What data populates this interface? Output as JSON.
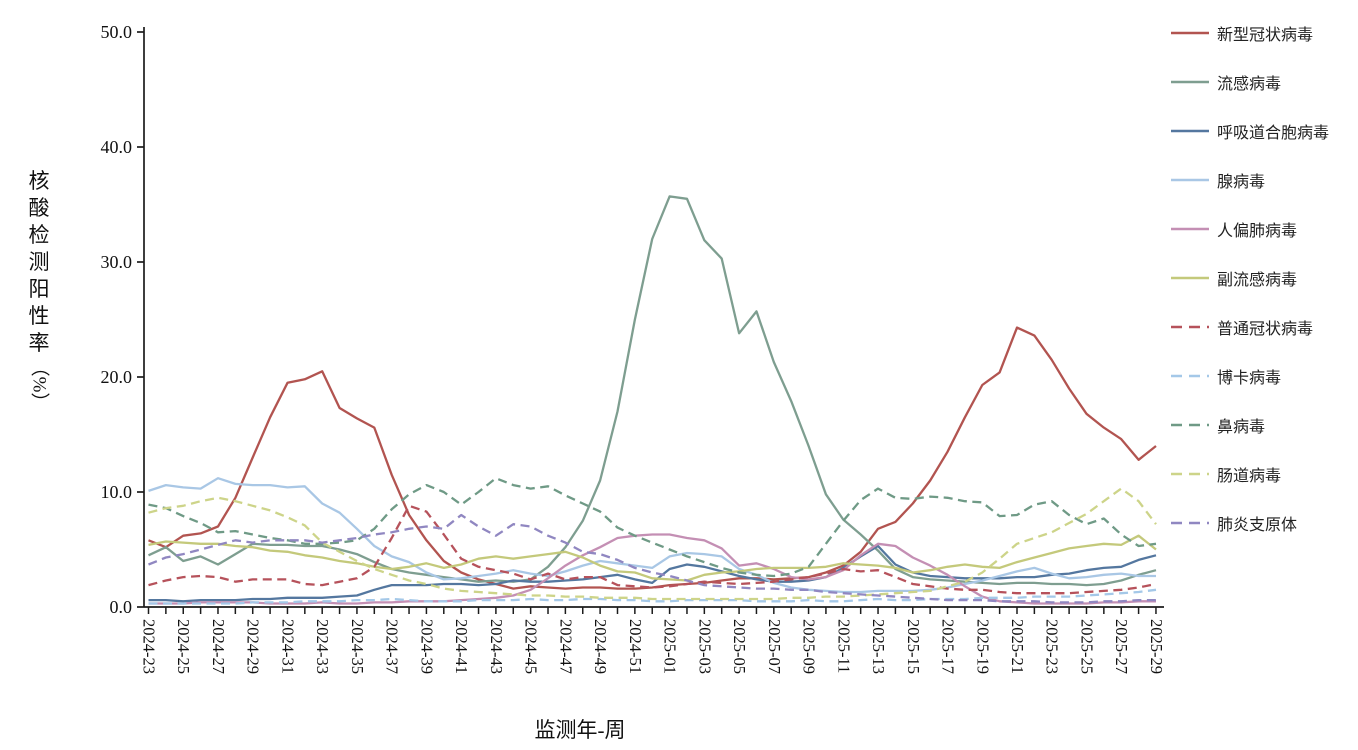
{
  "chart_data": {
    "type": "line",
    "title": "",
    "x_label": "监测年-周",
    "y_label": "核酸检测阳性率",
    "y_unit": "（%）",
    "ylim": [
      0,
      50
    ],
    "y_ticks": [
      0,
      10,
      20,
      30,
      40,
      50
    ],
    "y_tick_labels": [
      "0.0",
      "10.0",
      "20.0",
      "30.0",
      "40.0",
      "50.0"
    ],
    "grid": false,
    "legend_position": "right",
    "x_tick_label_every": 2,
    "x": [
      "2024-23",
      "2024-24",
      "2024-25",
      "2024-26",
      "2024-27",
      "2024-28",
      "2024-29",
      "2024-30",
      "2024-31",
      "2024-32",
      "2024-33",
      "2024-34",
      "2024-35",
      "2024-36",
      "2024-37",
      "2024-38",
      "2024-39",
      "2024-40",
      "2024-41",
      "2024-42",
      "2024-43",
      "2024-44",
      "2024-45",
      "2024-46",
      "2024-47",
      "2024-48",
      "2024-49",
      "2024-50",
      "2024-51",
      "2024-52",
      "2025-01",
      "2025-02",
      "2025-03",
      "2025-04",
      "2025-05",
      "2025-06",
      "2025-07",
      "2025-08",
      "2025-09",
      "2025-10",
      "2025-11",
      "2025-12",
      "2025-13",
      "2025-14",
      "2025-15",
      "2025-16",
      "2025-17",
      "2025-18",
      "2025-19",
      "2025-20",
      "2025-21",
      "2025-22",
      "2025-23",
      "2025-24",
      "2025-25",
      "2025-26",
      "2025-27",
      "2025-28",
      "2025-29"
    ],
    "series": [
      {
        "key": "covid",
        "name": "新型冠状病毒",
        "color": "#b25450",
        "style": "solid",
        "values": [
          5.8,
          5.2,
          6.2,
          6.4,
          7.0,
          9.5,
          13.0,
          16.5,
          19.5,
          19.8,
          20.5,
          17.3,
          16.4,
          15.6,
          11.5,
          8.0,
          5.8,
          4.0,
          3.0,
          2.4,
          2.0,
          1.6,
          1.8,
          1.7,
          1.6,
          1.7,
          1.7,
          1.6,
          1.6,
          1.7,
          1.9,
          2.0,
          2.1,
          2.3,
          2.5,
          2.5,
          2.4,
          2.5,
          2.6,
          3.0,
          3.6,
          4.8,
          6.8,
          7.4,
          9.0,
          11.0,
          13.5,
          16.5,
          19.3,
          20.4,
          24.3,
          23.6,
          21.5,
          19.0,
          16.8,
          15.6,
          14.6,
          12.8,
          14.0
        ]
      },
      {
        "key": "influenza",
        "name": "流感病毒",
        "color": "#7e9e90",
        "style": "solid",
        "values": [
          4.5,
          5.2,
          4.0,
          4.4,
          3.7,
          4.6,
          5.5,
          5.4,
          5.4,
          5.3,
          5.3,
          5.0,
          4.6,
          3.9,
          3.3,
          3.0,
          2.8,
          2.6,
          2.4,
          2.2,
          2.3,
          2.2,
          2.4,
          3.5,
          5.2,
          7.5,
          11.0,
          17.0,
          25.0,
          32.0,
          35.7,
          35.5,
          31.9,
          30.3,
          23.8,
          25.7,
          21.3,
          17.9,
          14.0,
          9.8,
          7.6,
          6.3,
          4.9,
          3.3,
          2.6,
          2.4,
          2.3,
          2.2,
          2.1,
          2.0,
          2.1,
          2.1,
          2.0,
          2.0,
          1.9,
          2.0,
          2.3,
          2.8,
          3.2
        ]
      },
      {
        "key": "rsv",
        "name": "呼吸道合胞病毒",
        "color": "#54779f",
        "style": "solid",
        "values": [
          0.6,
          0.6,
          0.5,
          0.6,
          0.6,
          0.6,
          0.7,
          0.7,
          0.8,
          0.8,
          0.8,
          0.9,
          1.0,
          1.5,
          1.9,
          1.9,
          1.9,
          2.0,
          2.0,
          1.9,
          2.0,
          2.3,
          2.2,
          2.2,
          2.3,
          2.4,
          2.6,
          2.8,
          2.4,
          2.1,
          3.3,
          3.7,
          3.5,
          3.1,
          2.7,
          2.4,
          2.2,
          2.2,
          2.3,
          2.6,
          3.4,
          4.4,
          5.3,
          3.7,
          3.0,
          2.7,
          2.6,
          2.5,
          2.5,
          2.5,
          2.6,
          2.6,
          2.8,
          2.9,
          3.2,
          3.4,
          3.5,
          4.1,
          4.5
        ]
      },
      {
        "key": "adenovirus",
        "name": "腺病毒",
        "color": "#a9c7e5",
        "style": "solid",
        "values": [
          10.1,
          10.6,
          10.4,
          10.3,
          11.2,
          10.7,
          10.6,
          10.6,
          10.4,
          10.5,
          9.0,
          8.2,
          6.8,
          5.3,
          4.4,
          3.9,
          3.0,
          2.4,
          2.5,
          2.7,
          2.9,
          3.2,
          2.9,
          2.7,
          3.1,
          3.6,
          4.0,
          3.8,
          3.6,
          3.4,
          4.4,
          4.7,
          4.6,
          4.4,
          3.3,
          2.8,
          2.1,
          1.7,
          1.5,
          1.4,
          1.3,
          1.3,
          1.4,
          1.4,
          1.4,
          1.5,
          1.7,
          2.0,
          2.3,
          2.7,
          3.1,
          3.4,
          2.9,
          2.5,
          2.6,
          2.8,
          2.9,
          2.7,
          2.7
        ]
      },
      {
        "key": "hmpv",
        "name": "人偏肺病毒",
        "color": "#c48fb4",
        "style": "solid",
        "values": [
          0.3,
          0.3,
          0.3,
          0.4,
          0.4,
          0.4,
          0.4,
          0.3,
          0.3,
          0.3,
          0.4,
          0.3,
          0.3,
          0.4,
          0.4,
          0.5,
          0.5,
          0.5,
          0.6,
          0.7,
          0.8,
          1.0,
          1.5,
          2.5,
          3.6,
          4.5,
          5.2,
          6.0,
          6.2,
          6.3,
          6.3,
          6.0,
          5.8,
          5.1,
          3.6,
          3.8,
          3.3,
          2.6,
          2.4,
          2.6,
          3.2,
          4.5,
          5.5,
          5.3,
          4.3,
          3.6,
          2.8,
          1.8,
          0.9,
          0.5,
          0.4,
          0.3,
          0.3,
          0.3,
          0.3,
          0.4,
          0.4,
          0.5,
          0.5
        ]
      },
      {
        "key": "parainfluenza",
        "name": "副流感病毒",
        "color": "#c4c97b",
        "style": "solid",
        "values": [
          5.4,
          5.7,
          5.6,
          5.5,
          5.5,
          5.3,
          5.2,
          4.9,
          4.8,
          4.5,
          4.3,
          4.0,
          3.8,
          3.5,
          3.3,
          3.5,
          3.8,
          3.4,
          3.7,
          4.2,
          4.4,
          4.2,
          4.4,
          4.6,
          4.8,
          4.3,
          3.6,
          3.1,
          3.0,
          2.5,
          2.4,
          2.3,
          2.8,
          3.0,
          3.1,
          3.3,
          3.4,
          3.4,
          3.4,
          3.5,
          3.8,
          3.7,
          3.6,
          3.4,
          3.0,
          3.2,
          3.5,
          3.7,
          3.5,
          3.4,
          3.9,
          4.3,
          4.7,
          5.1,
          5.3,
          5.5,
          5.4,
          6.2,
          5.0
        ]
      },
      {
        "key": "common-coronavirus",
        "name": "普通冠状病毒",
        "color": "#b6525b",
        "style": "dashed",
        "values": [
          1.9,
          2.3,
          2.6,
          2.7,
          2.6,
          2.2,
          2.4,
          2.4,
          2.4,
          2.0,
          1.9,
          2.2,
          2.5,
          3.5,
          6.0,
          8.8,
          8.3,
          6.3,
          4.2,
          3.5,
          3.2,
          2.9,
          2.4,
          2.9,
          2.4,
          2.6,
          2.6,
          1.9,
          1.8,
          1.7,
          1.8,
          2.0,
          2.2,
          2.1,
          2.0,
          2.1,
          2.2,
          2.4,
          2.6,
          2.9,
          3.3,
          3.1,
          3.2,
          2.6,
          2.0,
          1.8,
          1.6,
          1.5,
          1.5,
          1.3,
          1.2,
          1.2,
          1.2,
          1.2,
          1.3,
          1.4,
          1.5,
          1.7,
          2.0
        ]
      },
      {
        "key": "bocavirus",
        "name": "博卡病毒",
        "color": "#a4c8e8",
        "style": "dashed",
        "values": [
          0.3,
          0.3,
          0.3,
          0.3,
          0.3,
          0.3,
          0.4,
          0.4,
          0.4,
          0.5,
          0.5,
          0.5,
          0.6,
          0.6,
          0.7,
          0.6,
          0.5,
          0.5,
          0.5,
          0.6,
          0.6,
          0.6,
          0.7,
          0.6,
          0.6,
          0.7,
          0.7,
          0.6,
          0.6,
          0.5,
          0.5,
          0.6,
          0.6,
          0.6,
          0.6,
          0.5,
          0.5,
          0.5,
          0.6,
          0.5,
          0.5,
          0.6,
          0.7,
          0.6,
          0.6,
          0.7,
          0.7,
          0.7,
          0.8,
          0.8,
          0.8,
          0.9,
          0.9,
          0.9,
          1.0,
          1.1,
          1.2,
          1.3,
          1.5
        ]
      },
      {
        "key": "rhinovirus",
        "name": "鼻病毒",
        "color": "#6f9a86",
        "style": "dashed",
        "values": [
          8.9,
          8.6,
          7.9,
          7.3,
          6.5,
          6.6,
          6.3,
          6.0,
          5.8,
          5.5,
          5.5,
          5.6,
          5.8,
          6.8,
          8.5,
          9.8,
          10.6,
          10.0,
          8.9,
          10.0,
          11.2,
          10.6,
          10.3,
          10.5,
          9.7,
          9.0,
          8.3,
          6.9,
          6.2,
          5.6,
          5.0,
          4.4,
          3.9,
          3.4,
          3.0,
          2.8,
          2.7,
          2.9,
          3.5,
          5.5,
          7.5,
          9.3,
          10.3,
          9.5,
          9.4,
          9.6,
          9.5,
          9.2,
          9.1,
          7.9,
          8.0,
          8.9,
          9.2,
          8.0,
          7.2,
          7.7,
          6.3,
          5.3,
          5.5
        ]
      },
      {
        "key": "enterovirus",
        "name": "肠道病毒",
        "color": "#cdd489",
        "style": "dashed",
        "values": [
          8.2,
          8.6,
          8.8,
          9.2,
          9.5,
          9.2,
          8.8,
          8.4,
          7.8,
          7.1,
          5.6,
          4.8,
          4.0,
          3.3,
          2.8,
          2.3,
          2.0,
          1.6,
          1.4,
          1.3,
          1.2,
          1.1,
          1.0,
          1.0,
          0.9,
          0.9,
          0.8,
          0.8,
          0.8,
          0.7,
          0.7,
          0.7,
          0.7,
          0.7,
          0.7,
          0.7,
          0.7,
          0.8,
          0.8,
          0.9,
          0.9,
          1.0,
          1.1,
          1.2,
          1.3,
          1.4,
          1.8,
          2.2,
          3.0,
          4.2,
          5.5,
          6.0,
          6.5,
          7.3,
          8.1,
          9.2,
          10.3,
          9.2,
          7.2
        ]
      },
      {
        "key": "mycoplasma",
        "name": "肺炎支原体",
        "color": "#9087c1",
        "style": "dashed",
        "values": [
          3.7,
          4.3,
          4.6,
          5.0,
          5.4,
          5.8,
          5.6,
          5.8,
          5.8,
          5.8,
          5.6,
          5.8,
          6.0,
          6.3,
          6.5,
          6.8,
          7.0,
          6.8,
          8.0,
          7.0,
          6.2,
          7.2,
          7.0,
          6.2,
          5.6,
          4.8,
          4.6,
          4.1,
          3.4,
          3.0,
          2.7,
          2.3,
          1.9,
          1.8,
          1.7,
          1.6,
          1.6,
          1.5,
          1.5,
          1.3,
          1.2,
          1.1,
          1.0,
          0.9,
          0.8,
          0.7,
          0.6,
          0.6,
          0.6,
          0.5,
          0.5,
          0.5,
          0.4,
          0.4,
          0.4,
          0.5,
          0.5,
          0.6,
          0.6
        ]
      }
    ]
  }
}
